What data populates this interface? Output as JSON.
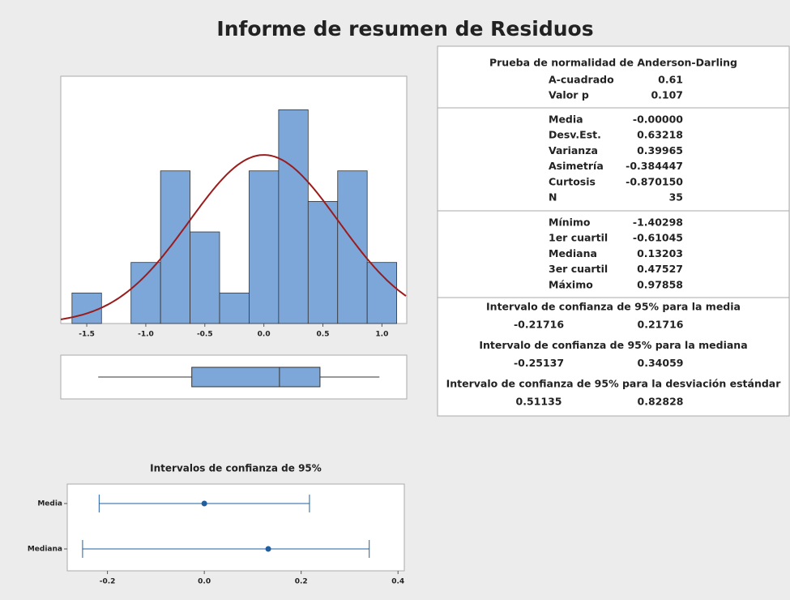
{
  "title": "Informe de resumen de Residuos",
  "chart_data": [
    {
      "type": "histogram",
      "bins": [
        -1.625,
        -1.375,
        -1.125,
        -0.875,
        -0.625,
        -0.375,
        -0.125,
        0.125,
        0.375,
        0.625,
        0.875,
        1.125
      ],
      "counts": [
        1,
        0,
        2,
        5,
        3,
        1,
        5,
        7,
        4,
        5,
        2
      ],
      "color": "#7da7d9",
      "xlim": [
        -1.72,
        1.21
      ],
      "ylim": [
        0,
        8.1
      ],
      "xticks": [
        -1.5,
        {
          "value": -1.0,
          "label": "-1.0"
        },
        -0.5,
        {
          "value": 0.0,
          "label": "0.0"
        },
        0.5,
        {
          "value": 1.0,
          "label": "1.0"
        }
      ],
      "curve": {
        "mean": 0,
        "sd": 0.63218,
        "color": "#9b1c1c"
      }
    },
    {
      "type": "box",
      "min": -1.40298,
      "q1": -0.61045,
      "median": 0.13203,
      "q3": 0.47527,
      "max": 0.97858,
      "color": "#7da7d9",
      "xlim": [
        -1.72,
        1.21
      ]
    },
    {
      "type": "interval",
      "title": "Intervalos de confianza de 95%",
      "categories": [
        "Media",
        "Mediana"
      ],
      "values": [
        0,
        0.13203
      ],
      "lower": [
        -0.21716,
        -0.25137
      ],
      "upper": [
        0.21716,
        0.34059
      ],
      "color": "#1f5fa0",
      "xlim": [
        -0.283,
        0.413
      ],
      "xticks": [
        -0.2,
        {
          "value": 0.0,
          "label": "0.0"
        },
        0.2,
        0.4
      ]
    }
  ],
  "summary_table": {
    "sections": [
      {
        "heading": "Prueba de normalidad de Anderson-Darling",
        "rows": [
          [
            "A-cuadrado",
            "0.61"
          ],
          [
            "Valor p",
            "0.107"
          ]
        ]
      },
      {
        "rows": [
          [
            "Media",
            "-0.00000"
          ],
          [
            "Desv.Est.",
            "0.63218"
          ],
          [
            "Varianza",
            "0.39965"
          ],
          [
            "Asimetría",
            "-0.384447"
          ],
          [
            "Curtosis",
            "-0.870150"
          ],
          [
            "N",
            "35"
          ]
        ]
      },
      {
        "rows": [
          [
            "Mínimo",
            "-1.40298"
          ],
          [
            "1er cuartil",
            "-0.61045"
          ],
          [
            "Mediana",
            "0.13203"
          ],
          [
            "3er cuartil",
            "0.47527"
          ],
          [
            "Máximo",
            "0.97858"
          ]
        ]
      }
    ],
    "intervals": [
      {
        "heading": "Intervalo de confianza de 95% para la media",
        "values": [
          "-0.21716",
          "0.21716"
        ]
      },
      {
        "heading": "Intervalo de confianza de 95% para la mediana",
        "values": [
          "-0.25137",
          "0.34059"
        ]
      },
      {
        "heading": "Intervalo de confianza de 95% para la desviación estándar",
        "values": [
          "0.51135",
          "0.82828"
        ]
      }
    ]
  }
}
